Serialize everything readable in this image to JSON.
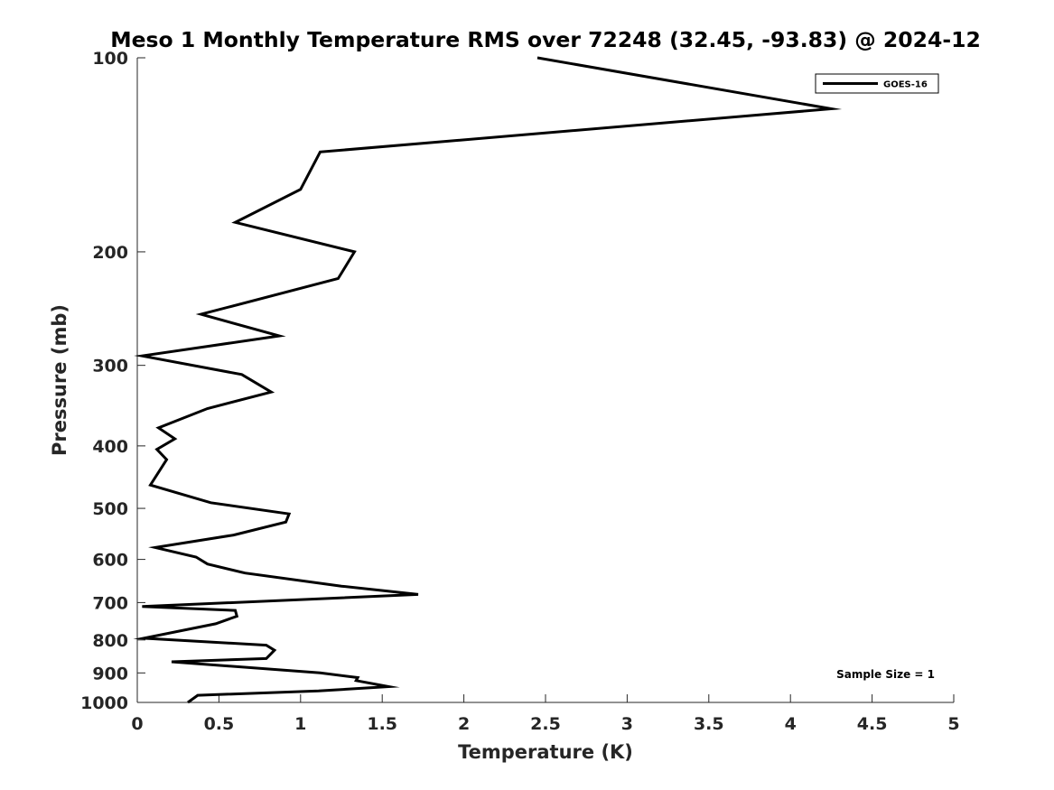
{
  "chart_data": {
    "type": "line",
    "title": "Meso 1 Monthly Temperature RMS over 72248 (32.45, -93.83) @ 2024-12",
    "xlabel": "Temperature (K)",
    "ylabel": "Pressure (mb)",
    "xlim": [
      0,
      5
    ],
    "ylim": [
      100,
      1000
    ],
    "y_scale": "log",
    "y_reversed": true,
    "x_ticks": [
      0,
      0.5,
      1,
      1.5,
      2,
      2.5,
      3,
      3.5,
      4,
      4.5,
      5
    ],
    "x_tick_labels": [
      "0",
      "0.5",
      "1",
      "1.5",
      "2",
      "2.5",
      "3",
      "3.5",
      "4",
      "4.5",
      "5"
    ],
    "y_ticks": [
      100,
      200,
      300,
      400,
      500,
      600,
      700,
      800,
      900,
      1000
    ],
    "y_tick_labels": [
      "100",
      "200",
      "300",
      "400",
      "500",
      "600",
      "700",
      "800",
      "900",
      "1000"
    ],
    "grid": false,
    "legend_position": "top-right",
    "line_color": "#000000",
    "annotation": "Sample Size = 1",
    "series": [
      {
        "name": "GOES-16",
        "x": [
          2.45,
          4.25,
          1.12,
          1.0,
          0.6,
          1.33,
          1.23,
          0.39,
          0.87,
          0.03,
          0.64,
          0.82,
          0.43,
          0.13,
          0.23,
          0.12,
          0.18,
          0.08,
          0.45,
          0.93,
          0.91,
          0.59,
          0.11,
          0.36,
          0.43,
          0.66,
          1.25,
          1.72,
          0.03,
          0.6,
          0.61,
          0.48,
          0.04,
          0.79,
          0.84,
          0.79,
          0.21,
          1.12,
          1.35,
          1.34,
          1.54,
          1.11,
          0.37,
          0.31
        ],
        "y": [
          100,
          120,
          140,
          160,
          180,
          200,
          220,
          250,
          270,
          290,
          310,
          330,
          350,
          375,
          390,
          405,
          420,
          460,
          490,
          510,
          525,
          550,
          575,
          595,
          610,
          630,
          660,
          680,
          710,
          720,
          735,
          755,
          795,
          815,
          830,
          855,
          865,
          900,
          915,
          925,
          945,
          960,
          975,
          1000
        ]
      }
    ]
  }
}
